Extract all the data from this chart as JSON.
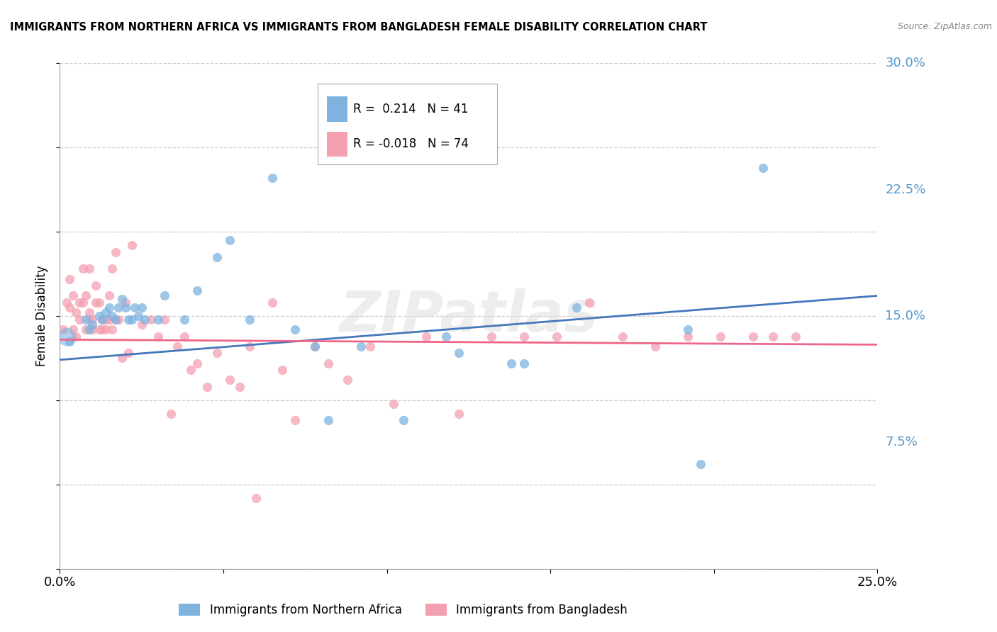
{
  "title": "IMMIGRANTS FROM NORTHERN AFRICA VS IMMIGRANTS FROM BANGLADESH FEMALE DISABILITY CORRELATION CHART",
  "source": "Source: ZipAtlas.com",
  "ylabel": "Female Disability",
  "xlim": [
    0.0,
    0.25
  ],
  "ylim": [
    0.0,
    0.3
  ],
  "xticks": [
    0.0,
    0.05,
    0.1,
    0.15,
    0.2,
    0.25
  ],
  "xticklabels": [
    "0.0%",
    "",
    "",
    "",
    "",
    "25.0%"
  ],
  "yticks": [
    0.0,
    0.075,
    0.15,
    0.225,
    0.3
  ],
  "yticklabels": [
    "",
    "7.5%",
    "15.0%",
    "22.5%",
    "30.0%"
  ],
  "blue_color": "#7EB3E0",
  "pink_color": "#F4A0B0",
  "blue_line_color": "#4477BB",
  "pink_line_color": "#EE6688",
  "ytick_color": "#5599CC",
  "watermark": "ZIPatlas",
  "legend_r_blue": " 0.214",
  "legend_n_blue": "41",
  "legend_r_pink": "-0.018",
  "legend_n_pink": "74",
  "blue_scatter_x": [
    0.003,
    0.008,
    0.009,
    0.01,
    0.012,
    0.013,
    0.014,
    0.015,
    0.016,
    0.017,
    0.018,
    0.019,
    0.02,
    0.021,
    0.022,
    0.023,
    0.024,
    0.025,
    0.026,
    0.03,
    0.032,
    0.038,
    0.042,
    0.048,
    0.052,
    0.058,
    0.065,
    0.072,
    0.078,
    0.082,
    0.092,
    0.098,
    0.105,
    0.118,
    0.122,
    0.138,
    0.142,
    0.158,
    0.192,
    0.196,
    0.215
  ],
  "blue_scatter_y": [
    0.135,
    0.148,
    0.142,
    0.145,
    0.15,
    0.148,
    0.152,
    0.155,
    0.15,
    0.148,
    0.155,
    0.16,
    0.155,
    0.148,
    0.148,
    0.155,
    0.15,
    0.155,
    0.148,
    0.148,
    0.162,
    0.148,
    0.165,
    0.185,
    0.195,
    0.148,
    0.232,
    0.142,
    0.132,
    0.088,
    0.132,
    0.285,
    0.088,
    0.138,
    0.128,
    0.122,
    0.122,
    0.155,
    0.142,
    0.062,
    0.238
  ],
  "pink_scatter_x": [
    0.001,
    0.002,
    0.003,
    0.003,
    0.004,
    0.004,
    0.005,
    0.005,
    0.006,
    0.006,
    0.007,
    0.007,
    0.008,
    0.008,
    0.009,
    0.009,
    0.009,
    0.01,
    0.01,
    0.011,
    0.011,
    0.012,
    0.012,
    0.013,
    0.013,
    0.014,
    0.014,
    0.015,
    0.015,
    0.016,
    0.016,
    0.017,
    0.017,
    0.018,
    0.019,
    0.02,
    0.021,
    0.022,
    0.025,
    0.028,
    0.03,
    0.032,
    0.034,
    0.036,
    0.038,
    0.04,
    0.042,
    0.045,
    0.048,
    0.052,
    0.055,
    0.058,
    0.06,
    0.065,
    0.068,
    0.072,
    0.078,
    0.082,
    0.088,
    0.095,
    0.102,
    0.112,
    0.122,
    0.132,
    0.142,
    0.152,
    0.162,
    0.172,
    0.182,
    0.192,
    0.202,
    0.212,
    0.218,
    0.225
  ],
  "pink_scatter_y": [
    0.142,
    0.158,
    0.155,
    0.172,
    0.142,
    0.162,
    0.138,
    0.152,
    0.148,
    0.158,
    0.158,
    0.178,
    0.142,
    0.162,
    0.148,
    0.152,
    0.178,
    0.142,
    0.148,
    0.168,
    0.158,
    0.142,
    0.158,
    0.142,
    0.148,
    0.142,
    0.148,
    0.162,
    0.148,
    0.178,
    0.142,
    0.148,
    0.188,
    0.148,
    0.125,
    0.158,
    0.128,
    0.192,
    0.145,
    0.148,
    0.138,
    0.148,
    0.092,
    0.132,
    0.138,
    0.118,
    0.122,
    0.108,
    0.128,
    0.112,
    0.108,
    0.132,
    0.042,
    0.158,
    0.118,
    0.088,
    0.132,
    0.122,
    0.112,
    0.132,
    0.098,
    0.138,
    0.092,
    0.138,
    0.138,
    0.138,
    0.158,
    0.138,
    0.132,
    0.138,
    0.138,
    0.138,
    0.138,
    0.138
  ],
  "blue_trend_x": [
    0.0,
    0.25
  ],
  "blue_trend_y": [
    0.124,
    0.162
  ],
  "pink_trend_x": [
    0.0,
    0.25
  ],
  "pink_trend_y": [
    0.136,
    0.133
  ]
}
